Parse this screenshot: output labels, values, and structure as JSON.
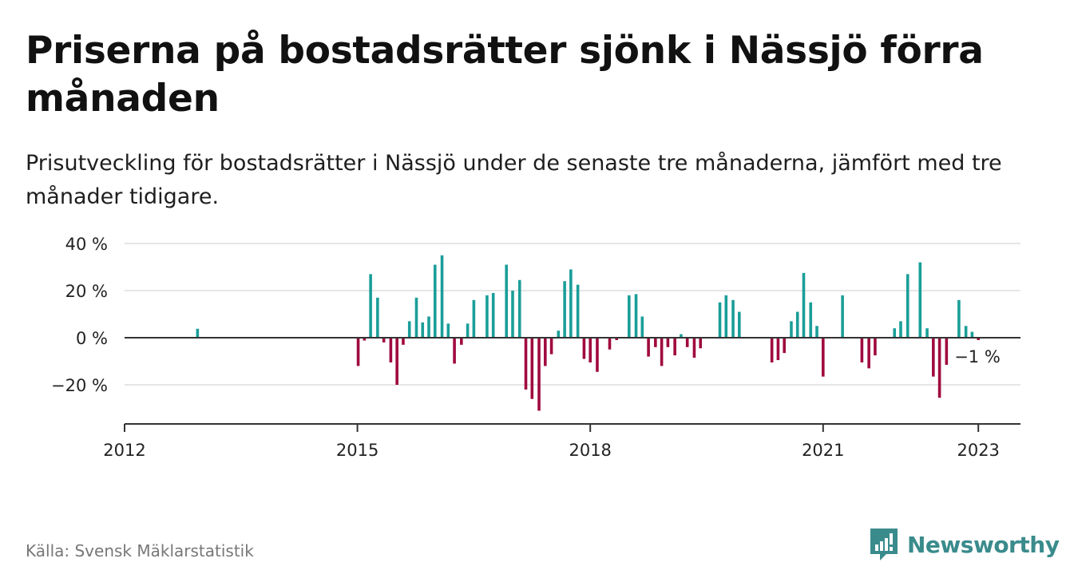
{
  "header": {
    "title": "Priserna på bostadsrätter sjönk i Nässjö förra månaden",
    "subtitle": "Prisutveckling för bostadsrätter i Nässjö under de senaste tre månaderna, jämfört med tre månader tidigare."
  },
  "footer": {
    "source": "Källa: Svensk Mäklarstatistik",
    "brand": "Newsworthy",
    "brand_icon": "newsworthy-logo-icon"
  },
  "colors": {
    "positive": "#1a9e99",
    "negative": "#a0093f",
    "zero_line": "#333333",
    "grid": "#dddddd",
    "brand": "#3a8b8c"
  },
  "chart_data": {
    "type": "bar",
    "title": "",
    "xlabel": "",
    "ylabel": "",
    "ylim": [
      -37,
      42
    ],
    "yticks": [
      40,
      20,
      0,
      -20
    ],
    "ytick_labels": [
      "40 %",
      "20 %",
      "0 %",
      "−20 %"
    ],
    "xticks": [
      2012,
      2015,
      2018,
      2021,
      2023
    ],
    "xtick_labels": [
      "2012",
      "2015",
      "2018",
      "2021",
      "2023"
    ],
    "grid": true,
    "end_label": "−1 %",
    "series": [
      {
        "values": [
          {
            "t": 2012.94,
            "v": 3.8
          },
          {
            "t": 2015.01,
            "v": -12
          },
          {
            "t": 2015.09,
            "v": -1.2
          },
          {
            "t": 2015.17,
            "v": 27
          },
          {
            "t": 2015.26,
            "v": 17
          },
          {
            "t": 2015.34,
            "v": -2
          },
          {
            "t": 2015.43,
            "v": -10.5
          },
          {
            "t": 2015.51,
            "v": -20
          },
          {
            "t": 2015.59,
            "v": -3
          },
          {
            "t": 2015.67,
            "v": 7
          },
          {
            "t": 2015.76,
            "v": 17
          },
          {
            "t": 2015.84,
            "v": 6.5
          },
          {
            "t": 2015.92,
            "v": 9
          },
          {
            "t": 2016.0,
            "v": 31
          },
          {
            "t": 2016.09,
            "v": 35
          },
          {
            "t": 2016.17,
            "v": 6
          },
          {
            "t": 2016.25,
            "v": -11
          },
          {
            "t": 2016.34,
            "v": -3
          },
          {
            "t": 2016.42,
            "v": 6
          },
          {
            "t": 2016.5,
            "v": 16
          },
          {
            "t": 2016.67,
            "v": 18
          },
          {
            "t": 2016.75,
            "v": 19
          },
          {
            "t": 2016.92,
            "v": 31
          },
          {
            "t": 2017.0,
            "v": 20
          },
          {
            "t": 2017.09,
            "v": 24.5
          },
          {
            "t": 2017.17,
            "v": -22
          },
          {
            "t": 2017.25,
            "v": -26
          },
          {
            "t": 2017.34,
            "v": -31
          },
          {
            "t": 2017.42,
            "v": -12
          },
          {
            "t": 2017.5,
            "v": -7
          },
          {
            "t": 2017.59,
            "v": 3
          },
          {
            "t": 2017.67,
            "v": 24
          },
          {
            "t": 2017.75,
            "v": 29
          },
          {
            "t": 2017.84,
            "v": 22.5
          },
          {
            "t": 2017.92,
            "v": -9
          },
          {
            "t": 2018.0,
            "v": -10.5
          },
          {
            "t": 2018.09,
            "v": -14.5
          },
          {
            "t": 2018.25,
            "v": -5
          },
          {
            "t": 2018.34,
            "v": -1
          },
          {
            "t": 2018.5,
            "v": 18
          },
          {
            "t": 2018.59,
            "v": 18.5
          },
          {
            "t": 2018.67,
            "v": 9
          },
          {
            "t": 2018.75,
            "v": -8
          },
          {
            "t": 2018.84,
            "v": -4
          },
          {
            "t": 2018.92,
            "v": -12
          },
          {
            "t": 2019.0,
            "v": -4
          },
          {
            "t": 2019.09,
            "v": -7.5
          },
          {
            "t": 2019.17,
            "v": 1.5
          },
          {
            "t": 2019.25,
            "v": -4
          },
          {
            "t": 2019.34,
            "v": -8.5
          },
          {
            "t": 2019.42,
            "v": -4.5
          },
          {
            "t": 2019.67,
            "v": 15
          },
          {
            "t": 2019.75,
            "v": 18
          },
          {
            "t": 2019.84,
            "v": 16
          },
          {
            "t": 2019.92,
            "v": 11
          },
          {
            "t": 2020.34,
            "v": -10.5
          },
          {
            "t": 2020.42,
            "v": -9.5
          },
          {
            "t": 2020.5,
            "v": -6.5
          },
          {
            "t": 2020.59,
            "v": 7
          },
          {
            "t": 2020.67,
            "v": 11
          },
          {
            "t": 2020.75,
            "v": 27.5
          },
          {
            "t": 2020.84,
            "v": 15
          },
          {
            "t": 2020.92,
            "v": 5
          },
          {
            "t": 2021.0,
            "v": -16.5
          },
          {
            "t": 2021.25,
            "v": 18
          },
          {
            "t": 2021.5,
            "v": -10.5
          },
          {
            "t": 2021.59,
            "v": -13
          },
          {
            "t": 2021.67,
            "v": -7.5
          },
          {
            "t": 2021.92,
            "v": 4
          },
          {
            "t": 2022.0,
            "v": 7
          },
          {
            "t": 2022.09,
            "v": 27
          },
          {
            "t": 2022.25,
            "v": 32
          },
          {
            "t": 2022.34,
            "v": 4
          },
          {
            "t": 2022.42,
            "v": -16.5
          },
          {
            "t": 2022.5,
            "v": -25.5
          },
          {
            "t": 2022.59,
            "v": -11.5
          },
          {
            "t": 2022.75,
            "v": 16
          },
          {
            "t": 2022.84,
            "v": 5
          },
          {
            "t": 2022.92,
            "v": 2.5
          },
          {
            "t": 2023.0,
            "v": -1
          }
        ]
      }
    ]
  }
}
